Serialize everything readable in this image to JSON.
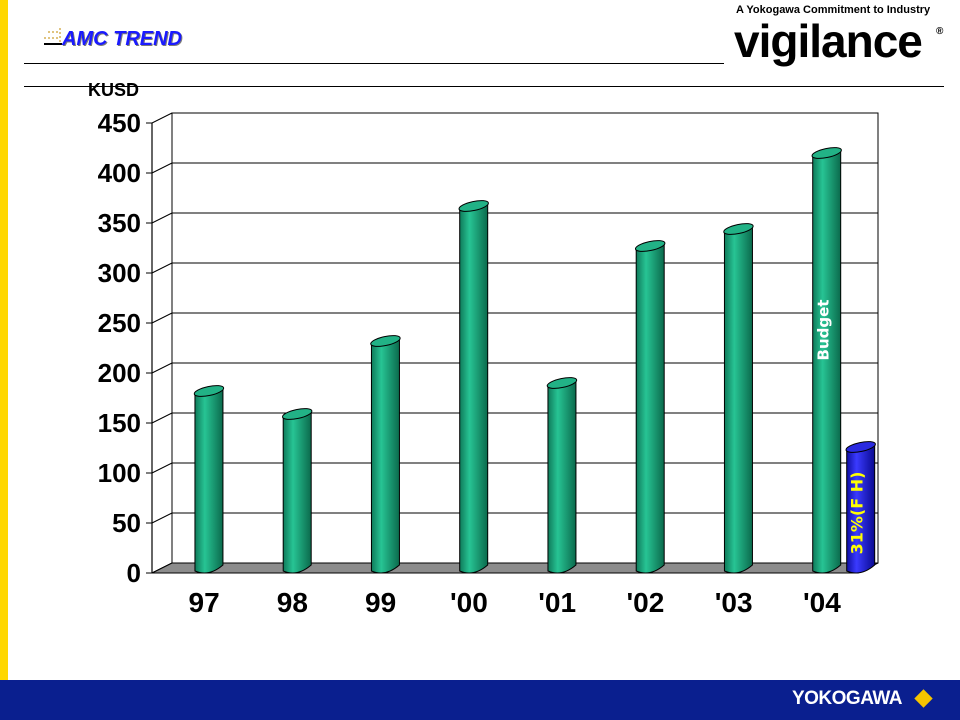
{
  "header": {
    "title": "AMC TREND",
    "brand_tagline": "A Yokogawa Commitment to Industry",
    "brand_name": "vigilance",
    "brand_mark": "®"
  },
  "footer": {
    "logo_text": "YOKOGAWA"
  },
  "colors": {
    "accent_yellow": "#ffd700",
    "footer_blue": "#0a1f8f",
    "bar_green": "#1aa07a",
    "forecast_blue": "#1a1ad0",
    "title_blue": "#1a1aff"
  },
  "chart_data": {
    "type": "bar",
    "title": "",
    "xlabel": "",
    "ylabel": "KUSD",
    "ylim": [
      0,
      450
    ],
    "yticks": [
      0,
      50,
      100,
      150,
      200,
      250,
      300,
      350,
      400,
      450
    ],
    "categories": [
      "97",
      "98",
      "99",
      "'00",
      "'01",
      "'02",
      "'03",
      "'04"
    ],
    "values": [
      180,
      157,
      230,
      365,
      188,
      325,
      342,
      418
    ],
    "grid": true,
    "annotations": [
      {
        "category": "'04",
        "text": "Budget",
        "value": 418
      },
      {
        "category": "'04",
        "text": "31%(F H)",
        "value": 130
      }
    ]
  }
}
